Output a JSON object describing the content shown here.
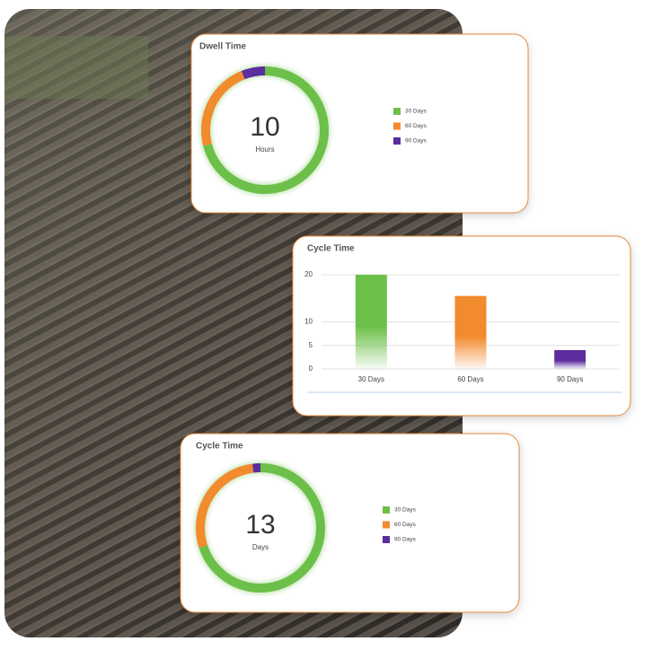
{
  "chart_data": [
    {
      "type": "donut",
      "title": "Dwell Time",
      "center_value": 10,
      "center_label": "Hours",
      "categories": [
        "30 Days",
        "60 Days",
        "90 Days"
      ],
      "values": [
        71,
        23,
        6
      ],
      "colors": [
        "#6cc04a",
        "#f28a2e",
        "#5b2d9e"
      ]
    },
    {
      "type": "bar",
      "title": "Cycle Time",
      "categories": [
        "30 Days",
        "60 Days",
        "90 Days"
      ],
      "values": [
        20,
        15.5,
        4
      ],
      "colors": [
        "#6cc04a",
        "#f28a2e",
        "#5b2d9e"
      ],
      "ylim": [
        0,
        20
      ],
      "yticks": [
        0,
        5,
        10,
        20
      ],
      "grid": true
    },
    {
      "type": "donut",
      "title": "Cycle Time",
      "center_value": 13,
      "center_label": "Days",
      "categories": [
        "30 Days",
        "60 Days",
        "90 Days"
      ],
      "values": [
        70,
        28,
        2
      ],
      "colors": [
        "#6cc04a",
        "#f28a2e",
        "#5b2d9e"
      ]
    }
  ]
}
